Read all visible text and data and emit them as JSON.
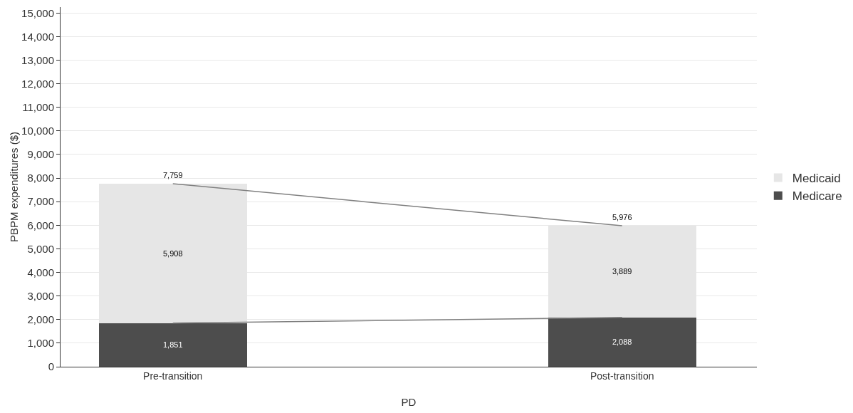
{
  "chart_data": {
    "type": "bar",
    "xlabel": "PD",
    "ylabel": "PBPM expenditures ($)",
    "categories": [
      "Pre-transition",
      "Post-transition"
    ],
    "stacked": true,
    "series": [
      {
        "name": "Medicare",
        "color": "#4d4d4d",
        "values": [
          1851,
          2088
        ],
        "value_labels": [
          "1,851",
          "2,088"
        ]
      },
      {
        "name": "Medicaid",
        "color": "#e6e6e6",
        "values": [
          5908,
          3889
        ],
        "value_labels": [
          "5,908",
          "3,889"
        ]
      },
      {
        "type": "line",
        "color": "#808080",
        "values": [
          1851,
          2088
        ]
      },
      {
        "type": "line",
        "color": "#808080",
        "values": [
          7759,
          5976
        ]
      }
    ],
    "totals": [
      "7,759",
      "5,976"
    ],
    "ylim": [
      0,
      15250
    ],
    "yticks": [
      0,
      {
        "value": 1000,
        "label": "1,000"
      },
      {
        "value": 2000,
        "label": "2,000"
      },
      {
        "value": 3000,
        "label": "3,000"
      },
      {
        "value": 4000,
        "label": "4,000"
      },
      {
        "value": 5000,
        "label": "5,000"
      },
      {
        "value": 6000,
        "label": "6,000"
      },
      {
        "value": 7000,
        "label": "7,000"
      },
      {
        "value": 8000,
        "label": "8,000"
      },
      {
        "value": 9000,
        "label": "9,000"
      },
      {
        "value": 10000,
        "label": "10,000"
      },
      {
        "value": 11000,
        "label": "11,000"
      },
      {
        "value": 12000,
        "label": "12,000"
      },
      {
        "value": 13000,
        "label": "13,000"
      },
      {
        "value": 14000,
        "label": "14,000"
      },
      {
        "value": 15000,
        "label": "15,000"
      }
    ],
    "grid": "y",
    "legend": "right"
  }
}
